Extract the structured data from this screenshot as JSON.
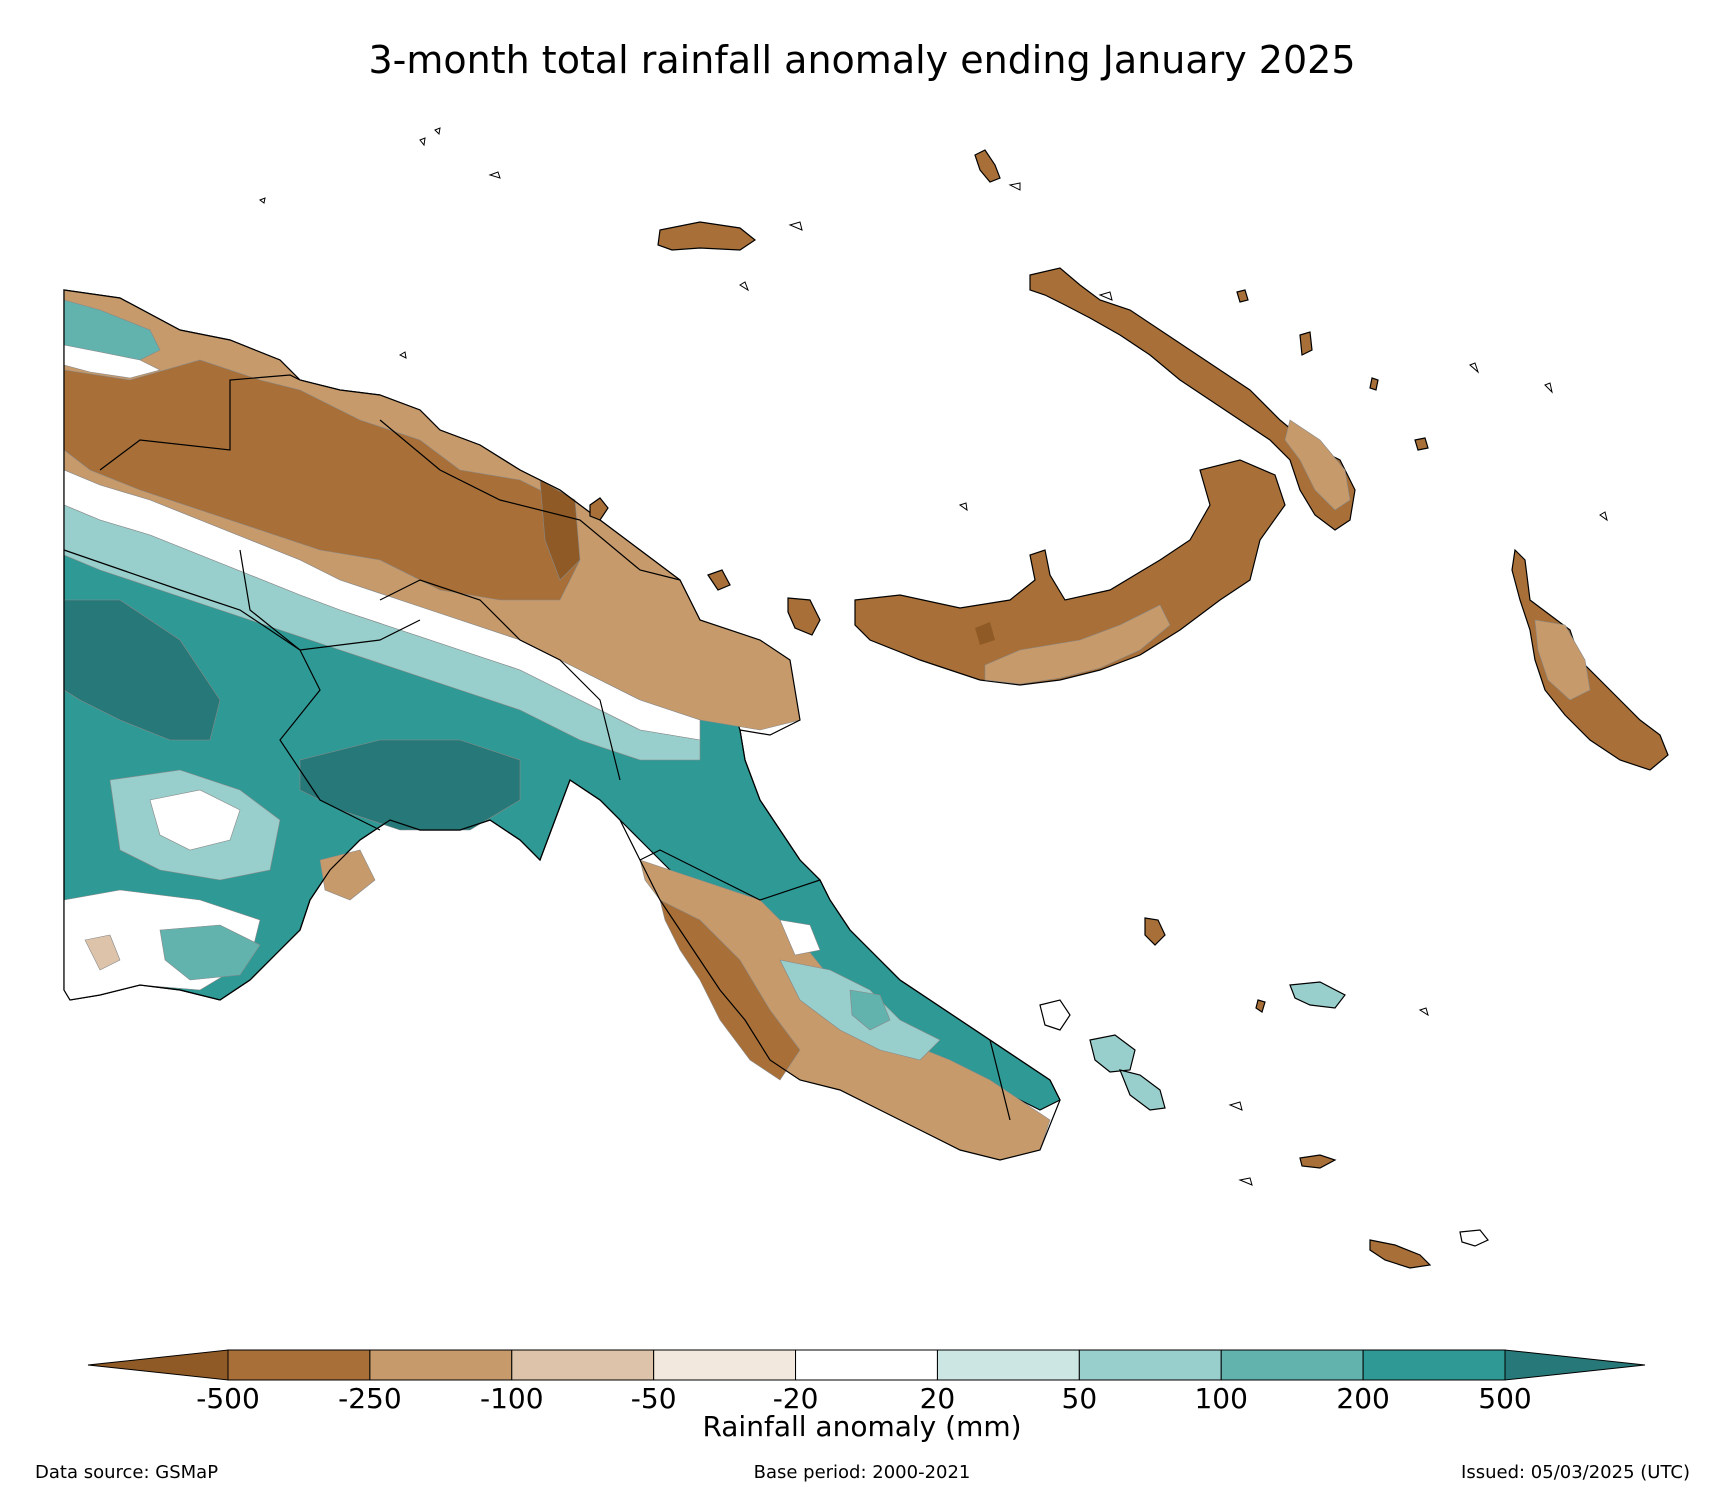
{
  "title": "3-month total rainfall anomaly ending January 2025",
  "colorbar": {
    "label": "Rainfall anomaly (mm)",
    "ticks": [
      "-500",
      "-250",
      "-100",
      "-50",
      "-20",
      "20",
      "50",
      "100",
      "200",
      "500"
    ],
    "under_color": "#8f5a26",
    "over_color": "#277878",
    "colors": [
      "#a87038",
      "#c69a6b",
      "#dcc3aa",
      "#f2e8dd",
      "#ffffff",
      "#cce6e4",
      "#98cecb",
      "#62b2ae",
      "#2f9a95"
    ]
  },
  "footer": {
    "source": "Data source: GSMaP",
    "base_period": "Base period: 2000-2021",
    "issued": "Issued: 05/03/2025 (UTC)"
  }
}
